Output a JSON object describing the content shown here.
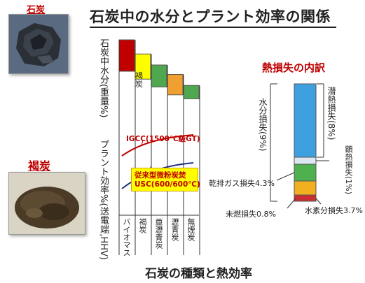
{
  "title": "石炭中の水分とプラント効率の関係",
  "photos": {
    "coal_label": "石炭",
    "brown_coal_label": "褐炭"
  },
  "left_chart": {
    "moisture_axis_label": "石炭中水分(重量%)",
    "efficiency_axis_label": "プラント効率%(送電端,HHV)",
    "categories": [
      "バイオマス",
      "褐炭",
      "亜瀝青炭",
      "瀝青炭",
      "無煙炭"
    ],
    "bar_colors": [
      "#c00000",
      "#ffff00",
      "#4fa84f",
      "#f0a030",
      "#4fa84f"
    ],
    "brown_coal_bar_text": "褐炭",
    "igcc_label": "IGCC(1500℃級GT)",
    "conventional_label_1": "従来型微粉炭焚",
    "conventional_label_2": "USC(600/600℃)",
    "footer": "石炭の種類と熱効率"
  },
  "chart_data": {
    "type": "bar",
    "categories": [
      "バイオマス",
      "褐炭",
      "亜瀝青炭",
      "瀝青炭",
      "無煙炭"
    ],
    "series": [
      {
        "values": [
          [
            40,
            80
          ],
          [
            30,
            62
          ],
          [
            20,
            48
          ],
          [
            10,
            36
          ],
          [
            5,
            22
          ]
        ]
      }
    ]
  },
  "breakdown": {
    "title": "熱損失の内訳",
    "latent_label": "潜熱損失(8%)",
    "moisture_label": "水分損失(9%)",
    "sensible_label": "顕熱損失(1%)",
    "flue_gas_label": "乾排ガス損失4.3%",
    "unburned_label": "未燃損失0.8%",
    "hydrogen_label": "水素分損失3.7%",
    "segments": [
      {
        "name": "latent",
        "color": "#3fa0e0"
      },
      {
        "name": "sensible",
        "color": "#dde8f0"
      },
      {
        "name": "flue-gas",
        "color": "#4fb04f"
      },
      {
        "name": "hydrogen",
        "color": "#f0b020"
      },
      {
        "name": "unburned",
        "color": "#c83030"
      }
    ]
  }
}
